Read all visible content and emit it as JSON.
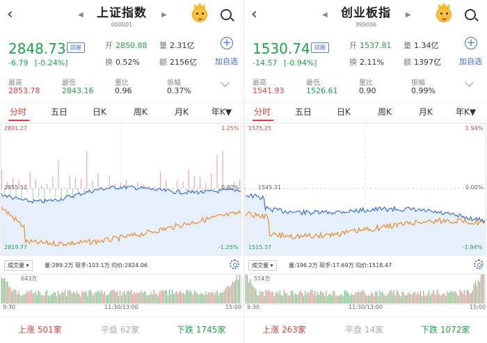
{
  "panels": [
    {
      "title": "上证指数",
      "code": "000001",
      "price": "2848.73",
      "change": "-6.79",
      "change_pct": "[-0.24%]",
      "remind_label": "提醒",
      "open_label": "开",
      "open": "2850.88",
      "vol_label": "量",
      "vol": "2.31亿",
      "turnover_label": "换",
      "turnover": "0.52%",
      "amount_label": "额",
      "amount": "2156亿",
      "add_label": "加自选",
      "high_label": "最高",
      "high": "2853.78",
      "low_label": "最低",
      "low": "2843.16",
      "ratio_label": "量比",
      "ratio": "0.96",
      "amp_label": "振幅",
      "amp": "0.37%",
      "tabs": [
        "分时",
        "五日",
        "日K",
        "周K",
        "月K",
        "年K▼"
      ],
      "chart_top": "2891.27",
      "chart_top_pct": "1.25%",
      "chart_mid": "2855.52",
      "chart_mid_pct": "0.00%",
      "chart_bottom": "2819.77",
      "chart_bottom_pct": "-1.25%",
      "vol_select": "成交量 ▾",
      "vol_info": "量:289.2万 现手:103.1万 均价:2824.06",
      "vol_max": "643万",
      "time_start": "9:30",
      "time_mid": "11:30/13:00",
      "time_end": "15:00",
      "up_label": "上涨",
      "up_count": "501家",
      "flat_label": "平盘",
      "flat_count": "62家",
      "down_label": "下跌",
      "down_count": "1745家"
    },
    {
      "title": "创业板指",
      "code": "399006",
      "price": "1530.74",
      "change": "-14.57",
      "change_pct": "[-0.94%]",
      "remind_label": "提醒",
      "open_label": "开",
      "open": "1537.81",
      "vol_label": "量",
      "vol": "1.34亿",
      "turnover_label": "换",
      "turnover": "2.11%",
      "amount_label": "额",
      "amount": "1397亿",
      "add_label": "加自选",
      "high_label": "最高",
      "high": "1541.93",
      "low_label": "最低",
      "low": "1526.61",
      "ratio_label": "量比",
      "ratio": "0.90",
      "amp_label": "振幅",
      "amp": "0.99%",
      "tabs": [
        "分时",
        "五日",
        "日K",
        "周K",
        "月K",
        "年K▼"
      ],
      "chart_top": "1575.25",
      "chart_top_pct": "1.94%",
      "chart_mid": "1545.31",
      "chart_mid_pct": "0.00%",
      "chart_bottom": "1515.37",
      "chart_bottom_pct": "-1.94%",
      "vol_select": "成交量 ▾",
      "vol_info": "量:196.2万 现手:17.69万 均价:1518.47",
      "vol_max": "514万",
      "time_start": "9:30",
      "time_mid": "11:30/13:00",
      "time_end": "15:00",
      "up_label": "上涨",
      "up_count": "263家",
      "flat_label": "平盘",
      "flat_count": "14家",
      "down_label": "下跌",
      "down_count": "1072家"
    }
  ],
  "colors": {
    "up": "#e03c3c",
    "down": "#1aa34a",
    "price_line": "#3b6fd8",
    "avg_line": "#f08a24",
    "accent": "#3b6fd8"
  },
  "icons": [
    "back-icon",
    "prev-arrow-icon",
    "next-arrow-icon",
    "mascot-icon",
    "search-icon",
    "add-icon",
    "expand-icon",
    "settings-icon"
  ]
}
